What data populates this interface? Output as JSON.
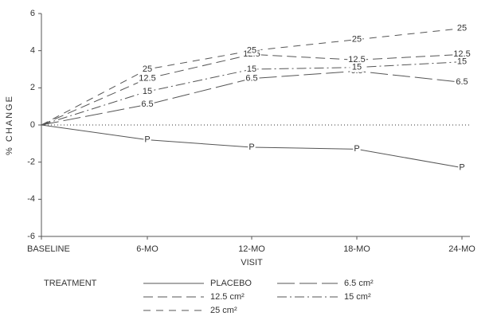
{
  "chart_data": {
    "type": "line",
    "x_label": "VISIT",
    "y_label": "% CHANGE",
    "categories": [
      "BASELINE",
      "6-MO",
      "12-MO",
      "18-MO",
      "24-MO"
    ],
    "ylim": [
      -6,
      6
    ],
    "yticks": [
      -6,
      -4,
      -2,
      0,
      2,
      4,
      6
    ],
    "zero_line": "dotted",
    "legend_title": "TREATMENT",
    "series": [
      {
        "name": "PLACEBO",
        "point_label": "P",
        "line_style": "solid",
        "color": "#555555",
        "values": [
          0,
          -0.8,
          -1.2,
          -1.3,
          -2.3
        ]
      },
      {
        "name": "6.5 cm²",
        "point_label": "6.5",
        "line_style": "long-dash",
        "color": "#555555",
        "values": [
          0,
          1.1,
          2.5,
          2.9,
          2.3
        ]
      },
      {
        "name": "12.5 cm²",
        "point_label": "12.5",
        "line_style": "dash",
        "color": "#555555",
        "values": [
          0,
          2.5,
          3.8,
          3.5,
          3.8
        ]
      },
      {
        "name": "15 cm²",
        "point_label": "15",
        "line_style": "dash-dot",
        "color": "#555555",
        "values": [
          0,
          1.8,
          3.0,
          3.1,
          3.4
        ]
      },
      {
        "name": "25 cm²",
        "point_label": "25",
        "line_style": "dashed",
        "color": "#555555",
        "values": [
          0,
          3.0,
          4.0,
          4.6,
          5.2
        ]
      }
    ]
  }
}
